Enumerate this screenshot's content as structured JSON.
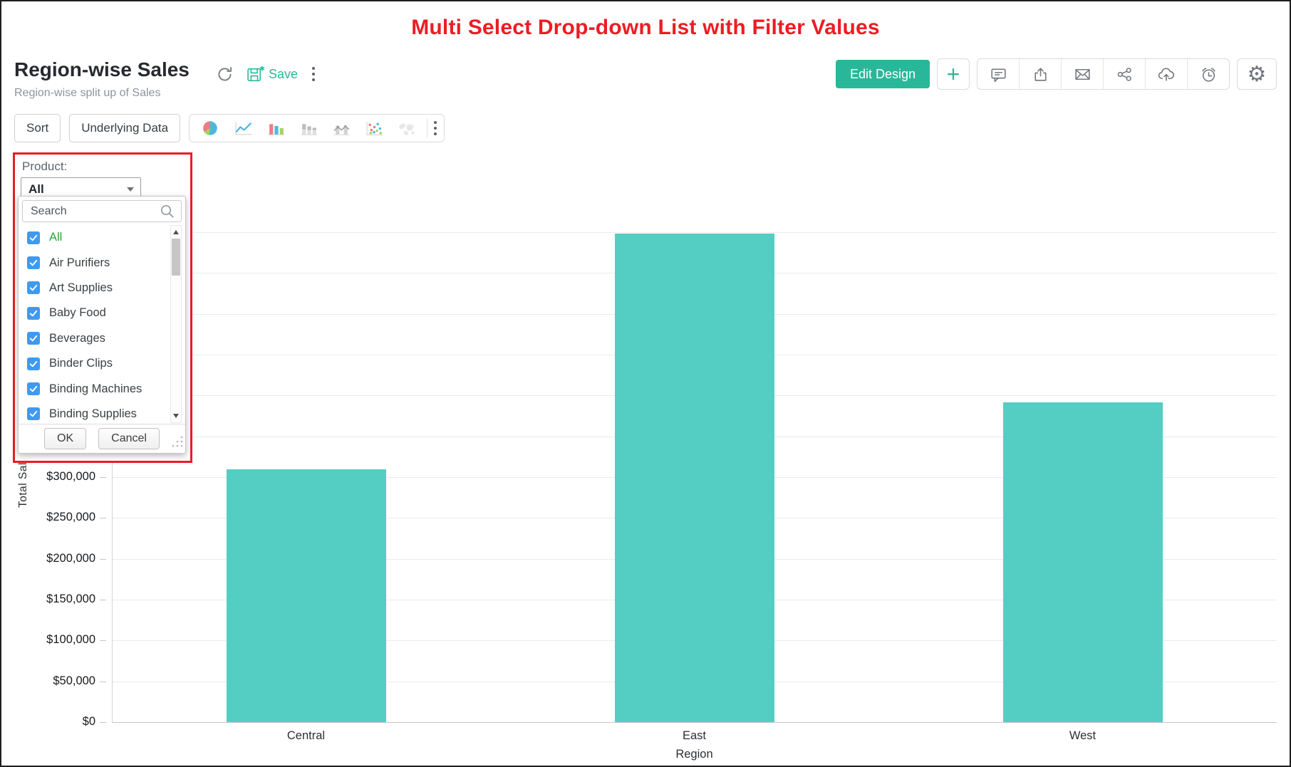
{
  "page_title": "Multi Select Drop-down List with Filter Values",
  "report": {
    "title": "Region-wise Sales",
    "subtitle": "Region-wise split up of Sales",
    "save_label": "Save"
  },
  "header_actions": {
    "edit_design_label": "Edit Design",
    "plus_label": "+",
    "icons": [
      "comments",
      "export",
      "email",
      "share",
      "cloud-upload",
      "alerts"
    ],
    "settings_glyph": "⚙"
  },
  "toolbar": {
    "sort_label": "Sort",
    "underlying_data_label": "Underlying Data",
    "chart_types": [
      "pie",
      "line",
      "bar",
      "stacked-bar",
      "bar-line-combo",
      "scatter",
      "map"
    ]
  },
  "filter_panel": {
    "label": "Product:",
    "selected_value": "All",
    "search_placeholder": "Search",
    "items": [
      {
        "label": "All",
        "checked": true,
        "highlight": true
      },
      {
        "label": "Air Purifiers",
        "checked": true
      },
      {
        "label": "Art Supplies",
        "checked": true
      },
      {
        "label": "Baby Food",
        "checked": true
      },
      {
        "label": "Beverages",
        "checked": true
      },
      {
        "label": "Binder Clips",
        "checked": true
      },
      {
        "label": "Binding Machines",
        "checked": true
      },
      {
        "label": "Binding Supplies",
        "checked": true
      }
    ],
    "ok_label": "OK",
    "cancel_label": "Cancel"
  },
  "chart_data": {
    "type": "bar",
    "title": "Region-wise Sales",
    "categories": [
      "Central",
      "East",
      "West"
    ],
    "values": [
      310000,
      598000,
      392000
    ],
    "series_name": "Total Sales",
    "xlabel": "Region",
    "ylabel": "Total Sales",
    "ylim": [
      0,
      600000
    ],
    "ytick_step": 50000,
    "ytick_prefix": "$",
    "grid": true,
    "bar_color": "#54cec3",
    "visible_ytick_labels": [
      "$0",
      "$50,000",
      "$100,000",
      "$150,000",
      "$200,000",
      "$250,000",
      "$300,000"
    ]
  },
  "colors": {
    "accent_teal": "#26b99a",
    "edit_button_teal": "#29b799",
    "banner_red": "#ed1c24",
    "filter_border_red": "#e81e25",
    "checkbox_blue": "#3e9af0",
    "all_item_green": "#26a53d",
    "bar_teal": "#54cec3"
  }
}
